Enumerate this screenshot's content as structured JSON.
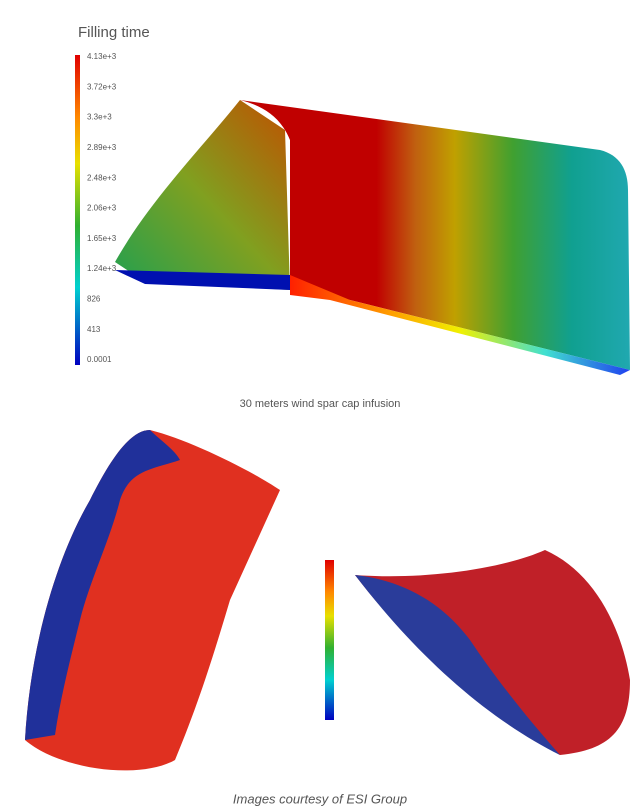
{
  "figure": {
    "top": {
      "legend_title": "Filling time",
      "legend_labels": [
        "4.13e+3",
        "3.72e+3",
        "3.3e+3",
        "2.89e+3",
        "2.48e+3",
        "2.06e+3",
        "1.65e+3",
        "1.24e+3",
        "826",
        "413",
        "0.0001"
      ],
      "caption": "30 meters wind spar cap infusion"
    },
    "credit": "Images courtesy of ESI Group"
  }
}
